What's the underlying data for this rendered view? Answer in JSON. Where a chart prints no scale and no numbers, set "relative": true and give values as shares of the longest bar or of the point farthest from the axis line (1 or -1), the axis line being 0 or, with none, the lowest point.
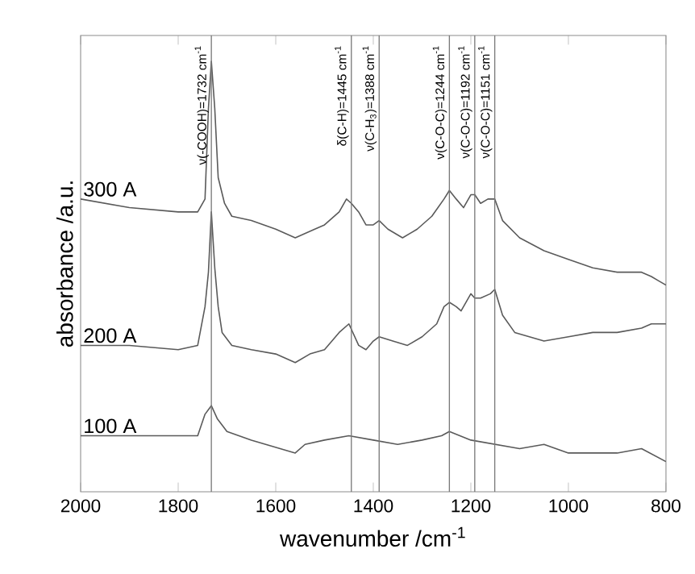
{
  "chart_data": {
    "type": "line",
    "xlabel": "wavenumber /cm$^{-1}$",
    "ylabel": "absorbance /a.u.",
    "relative": true,
    "xlim": [
      2000,
      800
    ],
    "xticks": [
      2000,
      1800,
      1600,
      1400,
      1200,
      1000,
      800
    ],
    "series": [
      {
        "name": "300 A",
        "color": "#5a5a5a",
        "x": [
          2000,
          1900,
          1800,
          1760,
          1745,
          1738,
          1732,
          1725,
          1718,
          1705,
          1690,
          1650,
          1600,
          1560,
          1520,
          1500,
          1470,
          1455,
          1445,
          1430,
          1415,
          1400,
          1388,
          1370,
          1340,
          1310,
          1280,
          1255,
          1244,
          1230,
          1215,
          1200,
          1192,
          1180,
          1165,
          1151,
          1135,
          1100,
          1050,
          1000,
          950,
          900,
          850,
          830,
          815,
          800
        ],
        "values": [
          0.68,
          0.66,
          0.65,
          0.65,
          0.68,
          0.89,
          1,
          0.89,
          0.73,
          0.67,
          0.64,
          0.63,
          0.61,
          0.59,
          0.61,
          0.62,
          0.65,
          0.68,
          0.67,
          0.65,
          0.62,
          0.62,
          0.63,
          0.61,
          0.59,
          0.61,
          0.64,
          0.68,
          0.7,
          0.68,
          0.66,
          0.69,
          0.69,
          0.67,
          0.68,
          0.68,
          0.63,
          0.59,
          0.56,
          0.54,
          0.52,
          0.51,
          0.51,
          0.5,
          0.49,
          0.48
        ]
      },
      {
        "name": "200 A",
        "color": "#5a5a5a",
        "x": [
          2000,
          1900,
          1800,
          1760,
          1745,
          1738,
          1732,
          1725,
          1718,
          1710,
          1690,
          1650,
          1600,
          1560,
          1530,
          1500,
          1470,
          1450,
          1430,
          1415,
          1400,
          1388,
          1360,
          1330,
          1300,
          1270,
          1255,
          1244,
          1230,
          1220,
          1200,
          1192,
          1180,
          1160,
          1151,
          1135,
          1110,
          1050,
          1000,
          950,
          900,
          850,
          830,
          800
        ],
        "values": [
          0.34,
          0.34,
          0.33,
          0.34,
          0.43,
          0.51,
          0.65,
          0.52,
          0.43,
          0.37,
          0.34,
          0.33,
          0.32,
          0.3,
          0.32,
          0.33,
          0.37,
          0.39,
          0.34,
          0.33,
          0.35,
          0.36,
          0.35,
          0.34,
          0.36,
          0.39,
          0.43,
          0.44,
          0.43,
          0.42,
          0.46,
          0.45,
          0.45,
          0.46,
          0.47,
          0.41,
          0.37,
          0.35,
          0.36,
          0.37,
          0.37,
          0.38,
          0.39,
          0.39
        ]
      },
      {
        "name": "100 A",
        "color": "#5a5a5a",
        "x": [
          2000,
          1900,
          1800,
          1760,
          1745,
          1732,
          1720,
          1700,
          1650,
          1560,
          1540,
          1500,
          1450,
          1400,
          1350,
          1300,
          1260,
          1244,
          1200,
          1150,
          1100,
          1050,
          1000,
          900,
          850,
          800
        ],
        "values": [
          0.13,
          0.13,
          0.13,
          0.13,
          0.18,
          0.2,
          0.17,
          0.14,
          0.12,
          0.09,
          0.11,
          0.12,
          0.13,
          0.12,
          0.11,
          0.12,
          0.13,
          0.14,
          0.12,
          0.11,
          0.1,
          0.11,
          0.09,
          0.09,
          0.1,
          0.07
        ]
      }
    ],
    "ref_lines": [
      {
        "axis": "x",
        "value": 1732,
        "label": "ν(-COOH)=1732 cm$^{-1}$",
        "color": "#7a7a7a"
      },
      {
        "axis": "x",
        "value": 1445,
        "label": "δ(C-H)=1445 cm$^{-1}$",
        "color": "#7a7a7a"
      },
      {
        "axis": "x",
        "value": 1388,
        "label": "ν(C-H$_{3}$)=1388 cm$^{-1}$",
        "color": "#7a7a7a"
      },
      {
        "axis": "x",
        "value": 1244,
        "label": "ν(C-O-C)=1244 cm$^{-1}$",
        "color": "#7a7a7a"
      },
      {
        "axis": "x",
        "value": 1192,
        "label": "ν(C-O-C)=1192 cm$^{-1}$",
        "color": "#7a7a7a"
      },
      {
        "axis": "x",
        "value": 1151,
        "label": "ν(C-O-C)=1151 cm$^{-1}$",
        "color": "#7a7a7a"
      }
    ]
  }
}
